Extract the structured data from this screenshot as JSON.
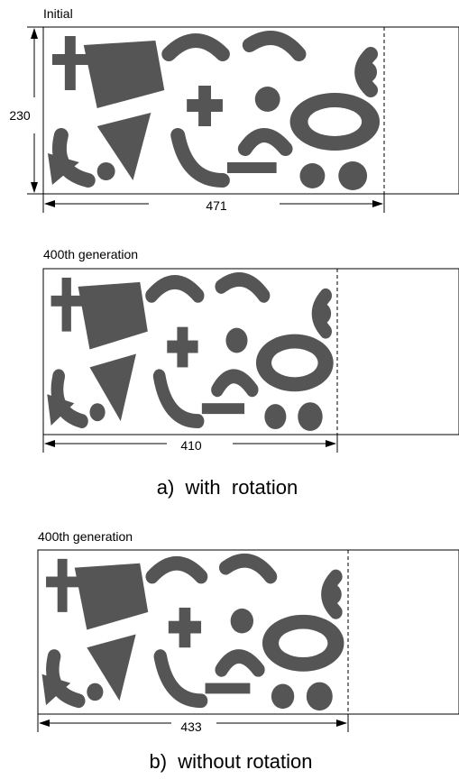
{
  "panels": [
    {
      "label": "Initial",
      "height_label": "230",
      "width_label": "471"
    },
    {
      "label": "400th generation",
      "width_label": "410"
    },
    {
      "label": "400th generation",
      "width_label": "433"
    }
  ],
  "captions": [
    "a)  with  rotation",
    "b)  without rotation"
  ]
}
